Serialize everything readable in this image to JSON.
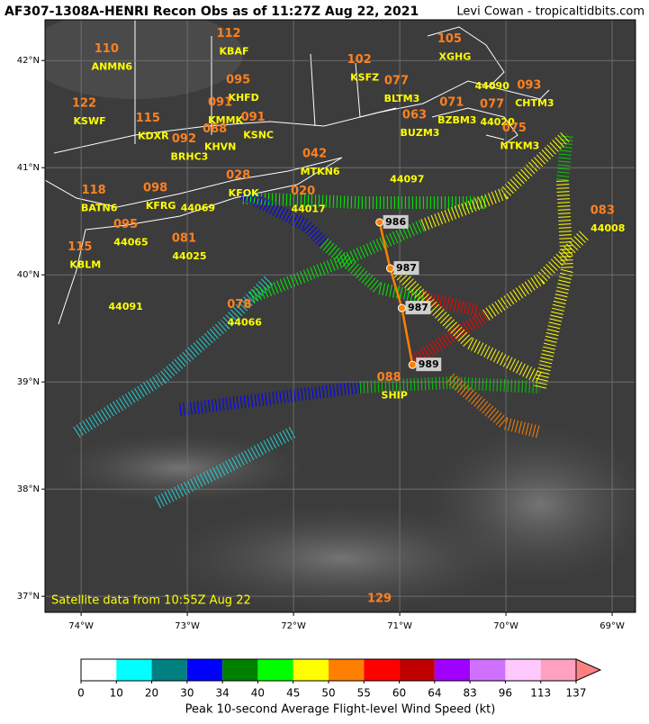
{
  "header": {
    "title": "AF307-1308A-HENRI Recon Obs as of 11:27Z Aug 22, 2021",
    "credit": "Levi Cowan - tropicaltidbits.com"
  },
  "map": {
    "xlim": [
      -74.34,
      -68.78
    ],
    "ylim": [
      36.85,
      42.38
    ],
    "xticks": [
      {
        "value": -74,
        "label": "74°W"
      },
      {
        "value": -73,
        "label": "73°W"
      },
      {
        "value": -72,
        "label": "72°W"
      },
      {
        "value": -71,
        "label": "71°W"
      },
      {
        "value": -70,
        "label": "70°W"
      },
      {
        "value": -69,
        "label": "69°W"
      }
    ],
    "yticks": [
      {
        "value": 37,
        "label": "37°N"
      },
      {
        "value": 38,
        "label": "38°N"
      },
      {
        "value": 39,
        "label": "39°N"
      },
      {
        "value": 40,
        "label": "40°N"
      },
      {
        "value": 41,
        "label": "41°N"
      },
      {
        "value": 42,
        "label": "42°N"
      }
    ],
    "stations": [
      {
        "id": "ANMN6",
        "obs": "110",
        "lon": -73.71,
        "lat": 41.94
      },
      {
        "id": "KBAF",
        "obs": "112",
        "lon": -72.56,
        "lat": 42.08
      },
      {
        "id": "KSFZ",
        "obs": "102",
        "lon": -71.33,
        "lat": 41.84
      },
      {
        "id": "XGHG",
        "obs": "105",
        "lon": -70.48,
        "lat": 42.03
      },
      {
        "id": "KHFD",
        "obs": "095",
        "lon": -72.47,
        "lat": 41.65
      },
      {
        "id": "KMMK",
        "obs": "091",
        "lon": -72.64,
        "lat": 41.44
      },
      {
        "id": "KSNC",
        "obs": "091",
        "lon": -72.33,
        "lat": 41.3
      },
      {
        "id": "BLTM3",
        "obs": "077",
        "lon": -70.98,
        "lat": 41.64
      },
      {
        "id": "44090",
        "lon": -70.13,
        "lat": 41.76
      },
      {
        "id": "CHTM3",
        "obs": "093",
        "lon": -69.73,
        "lat": 41.6
      },
      {
        "id": "KSWF",
        "obs": "122",
        "lon": -73.92,
        "lat": 41.43
      },
      {
        "id": "KDXR",
        "obs": "115",
        "lon": -73.32,
        "lat": 41.29
      },
      {
        "id": "KHVN",
        "obs": "088",
        "lon": -72.69,
        "lat": 41.19
      },
      {
        "id": "BRHC3",
        "obs": "092",
        "lon": -72.98,
        "lat": 41.1
      },
      {
        "id": "BZBM3",
        "obs": "071",
        "lon": -70.46,
        "lat": 41.44
      },
      {
        "id": "44020",
        "obs": "077",
        "lon": -70.08,
        "lat": 41.42
      },
      {
        "id": "BUZM3",
        "obs": "063",
        "lon": -70.81,
        "lat": 41.32
      },
      {
        "id": "NTKM3",
        "obs": "075",
        "lon": -69.87,
        "lat": 41.2
      },
      {
        "id": "MTKN6",
        "obs": "042",
        "lon": -71.75,
        "lat": 40.96
      },
      {
        "id": "44097",
        "lon": -70.93,
        "lat": 40.89
      },
      {
        "id": "KFOK",
        "obs": "028",
        "lon": -72.47,
        "lat": 40.76
      },
      {
        "id": "44017",
        "obs": "020",
        "lon": -71.86,
        "lat": 40.61
      },
      {
        "id": "BATN6",
        "obs": "118",
        "lon": -73.83,
        "lat": 40.62
      },
      {
        "id": "KFRG",
        "obs": "098",
        "lon": -73.25,
        "lat": 40.64
      },
      {
        "id": "44069",
        "lon": -72.9,
        "lat": 40.62
      },
      {
        "id": "44008",
        "obs": "083",
        "lon": -69.04,
        "lat": 40.43
      },
      {
        "id": "44065",
        "obs": "095",
        "lon": -73.53,
        "lat": 40.3
      },
      {
        "id": "44025",
        "obs": "081",
        "lon": -72.98,
        "lat": 40.17
      },
      {
        "id": "KBLM",
        "obs": "115",
        "lon": -73.96,
        "lat": 40.09
      },
      {
        "id": "44091",
        "lon": -73.58,
        "lat": 39.7
      },
      {
        "id": "44066",
        "obs": "078",
        "lon": -72.46,
        "lat": 39.55
      },
      {
        "id": "SHIP",
        "obs": "088",
        "lon": -71.05,
        "lat": 38.87
      },
      {
        "id": "SHIP",
        "obs": "129",
        "lon": -71.14,
        "lat": 36.81
      }
    ],
    "center_fixes": [
      {
        "pressure": 986,
        "lon": -71.19,
        "lat": 40.49
      },
      {
        "pressure": 987,
        "lon": -71.09,
        "lat": 40.06
      },
      {
        "pressure": 987,
        "lon": -70.98,
        "lat": 39.69
      },
      {
        "pressure": 989,
        "lon": -70.88,
        "lat": 39.16
      }
    ],
    "note": "Satellite data from 10:55Z Aug 22"
  },
  "legend": {
    "ticks": [
      0,
      10,
      20,
      30,
      34,
      40,
      45,
      50,
      55,
      60,
      64,
      83,
      96,
      113,
      137
    ],
    "colors": [
      "#ffffff",
      "#00ffff",
      "#008080",
      "#0000ff",
      "#008000",
      "#00ff00",
      "#ffff00",
      "#ff8000",
      "#ff0000",
      "#c00000",
      "#a000ff",
      "#d070ff",
      "#ffc8ff",
      "#ffa0c0",
      "#ff8080"
    ],
    "label": "Peak 10-second Average Flight-level Wind Speed (kt)"
  }
}
